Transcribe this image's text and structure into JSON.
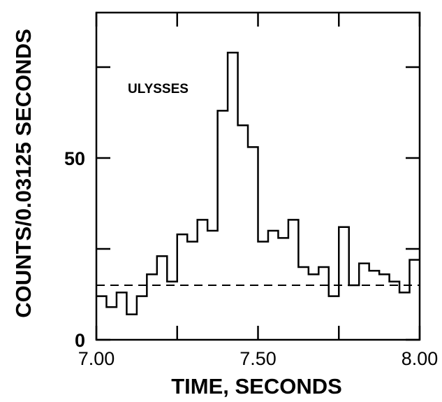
{
  "chart_data": {
    "type": "line",
    "title": "",
    "xlabel": "TIME, SECONDS",
    "ylabel": "COUNTS/0.03125 SECONDS",
    "xlim": [
      7.0,
      8.0
    ],
    "ylim": [
      0,
      90
    ],
    "x_ticks": [
      7.0,
      7.25,
      7.5,
      7.75,
      8.0
    ],
    "x_tick_labels": [
      "7.00",
      "",
      "7.50",
      "",
      "8.00"
    ],
    "y_ticks": [
      0,
      25,
      50,
      75
    ],
    "y_tick_labels": [
      "0",
      "",
      "50",
      ""
    ],
    "grid": false,
    "annotation": "ULYSSES",
    "series": [
      {
        "style": "step",
        "bin_width": 0.03125,
        "x_start": 7.0,
        "values": [
          12,
          9,
          13,
          7,
          12,
          18,
          23,
          16,
          29,
          27,
          33,
          30,
          63,
          79,
          59,
          53,
          27,
          30,
          28,
          33,
          20,
          18,
          20,
          12,
          31,
          15,
          21,
          19,
          18,
          16,
          13,
          22
        ]
      }
    ],
    "background_level": 15
  }
}
